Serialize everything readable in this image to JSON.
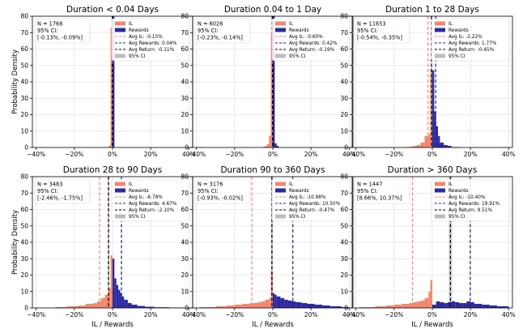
{
  "figure": {
    "xlabel": "IL / Rewards",
    "ylabel": "Probability Density",
    "x_ticks": [
      "−40%",
      "−20%",
      "0%",
      "20%",
      "40%"
    ],
    "y_ticks": [
      "0",
      "10",
      "20",
      "30",
      "40",
      "50",
      "60",
      "70",
      "80"
    ],
    "legend_labels": [
      "IL",
      "Rewards",
      "Avg IL: ",
      "Avg Rewards: ",
      "Avg Return: ",
      "95% CI"
    ],
    "colors": {
      "il": "#f4866d",
      "rewards": "#2b2aa0",
      "avg_il": "#f4866d",
      "avg_rewards": "#1f1f8f",
      "avg_return": "#000000",
      "ci": "#bdbdbd"
    }
  },
  "chart_data": [
    {
      "type": "bar",
      "title": "Duration < 0.04 Days",
      "n_text": "N = 1768",
      "ci_label": "95% CI:",
      "ci_text": "[-0.13%, -0.09%]",
      "avg_il": -0.15,
      "avg_il_text": "-0.15%",
      "avg_rewards": 0.04,
      "avg_rewards_text": "0.04%",
      "avg_return": -0.11,
      "avg_return_text": "-0.11%",
      "ci": [
        -0.13,
        -0.09
      ],
      "il_hist": [
        [
          -2,
          -1,
          1
        ],
        [
          -1,
          0,
          73
        ]
      ],
      "rewards_hist": [
        [
          0,
          1,
          80
        ]
      ]
    },
    {
      "type": "bar",
      "title": "Duration 0.04 to 1 Day",
      "n_text": "N = 6026",
      "ci_label": "95% CI:",
      "ci_text": "[-0.23%, -0.14%]",
      "avg_il": -0.6,
      "avg_il_text": "-0.60%",
      "avg_rewards": 0.42,
      "avg_rewards_text": "0.42%",
      "avg_return": -0.19,
      "avg_return_text": "-0.19%",
      "ci": [
        -0.23,
        -0.14
      ],
      "il_hist": [
        [
          -5,
          -4,
          0.5
        ],
        [
          -4,
          -3,
          1
        ],
        [
          -3,
          -2,
          2
        ],
        [
          -2,
          -1,
          7
        ],
        [
          -1,
          0,
          70
        ]
      ],
      "rewards_hist": [
        [
          0,
          1,
          80
        ],
        [
          1,
          2,
          2.5
        ],
        [
          2,
          3,
          1
        ]
      ]
    },
    {
      "type": "bar",
      "title": "Duration 1 to 28 Days",
      "n_text": "N = 11653",
      "ci_label": "95% CI:",
      "ci_text": "[-0.54%, -0.35%]",
      "avg_il": -2.22,
      "avg_il_text": "-2.22%",
      "avg_rewards": 1.77,
      "avg_rewards_text": "1.77%",
      "avg_return": -0.45,
      "avg_return_text": "-0.45%",
      "ci": [
        -0.54,
        -0.35
      ],
      "il_hist": [
        [
          -14,
          -12,
          0.3
        ],
        [
          -12,
          -10,
          0.5
        ],
        [
          -10,
          -8,
          1
        ],
        [
          -8,
          -6,
          1.5
        ],
        [
          -6,
          -4,
          3
        ],
        [
          -4,
          -2,
          7
        ],
        [
          -2,
          -1,
          8
        ],
        [
          -1,
          0,
          48
        ]
      ],
      "rewards_hist": [
        [
          0,
          1,
          47
        ],
        [
          1,
          2,
          22
        ],
        [
          2,
          3,
          13
        ],
        [
          3,
          4,
          7
        ],
        [
          4,
          6,
          3
        ],
        [
          6,
          8,
          1.5
        ],
        [
          8,
          10,
          1
        ],
        [
          10,
          14,
          0.3
        ]
      ]
    },
    {
      "type": "bar",
      "title": "Duration 28 to 90 Days",
      "n_text": "N = 3483",
      "ci_label": "95% CI:",
      "ci_text": "[-2.46%, -1.75%]",
      "avg_il": -6.78,
      "avg_il_text": "-6.78%",
      "avg_rewards": 4.67,
      "avg_rewards_text": "4.67%",
      "avg_return": -2.1,
      "avg_return_text": "-2.10%",
      "ci": [
        -2.46,
        -1.75
      ],
      "il_hist": [
        [
          -30,
          -24,
          0.5
        ],
        [
          -24,
          -18,
          1
        ],
        [
          -18,
          -14,
          1.5
        ],
        [
          -14,
          -10,
          2.5
        ],
        [
          -10,
          -8,
          3
        ],
        [
          -8,
          -6,
          4
        ],
        [
          -6,
          -4,
          6
        ],
        [
          -4,
          -2,
          8
        ],
        [
          -2,
          -1,
          12
        ],
        [
          -1,
          0,
          32
        ]
      ],
      "rewards_hist": [
        [
          0,
          1,
          30
        ],
        [
          1,
          2,
          18
        ],
        [
          2,
          3,
          14
        ],
        [
          3,
          4,
          11
        ],
        [
          4,
          5,
          9
        ],
        [
          5,
          6,
          7
        ],
        [
          6,
          8,
          5
        ],
        [
          8,
          10,
          3
        ],
        [
          10,
          13,
          2
        ],
        [
          13,
          17,
          1.2
        ],
        [
          17,
          22,
          0.7
        ],
        [
          22,
          30,
          0.4
        ],
        [
          30,
          38,
          0.2
        ]
      ]
    },
    {
      "type": "bar",
      "title": "Duration 90 to 360 Days",
      "n_text": "N = 3176",
      "ci_label": "95% CI:",
      "ci_text": "[-0.93%, -0.02%]",
      "avg_il": -10.98,
      "avg_il_text": "-10.98%",
      "avg_rewards": 10.5,
      "avg_rewards_text": "10.50%",
      "avg_return": -0.47,
      "avg_return_text": "-0.47%",
      "ci": [
        -0.93,
        -0.02
      ],
      "il_hist": [
        [
          -38,
          -30,
          0.5
        ],
        [
          -30,
          -24,
          1
        ],
        [
          -24,
          -20,
          1.5
        ],
        [
          -20,
          -16,
          2
        ],
        [
          -16,
          -12,
          2.5
        ],
        [
          -12,
          -10,
          3
        ],
        [
          -10,
          -8,
          3
        ],
        [
          -8,
          -6,
          3.5
        ],
        [
          -6,
          -4,
          4
        ],
        [
          -4,
          -2,
          5
        ],
        [
          -2,
          -1,
          6
        ],
        [
          -1,
          0,
          22
        ]
      ],
      "rewards_hist": [
        [
          0,
          1,
          9
        ],
        [
          1,
          2,
          8
        ],
        [
          2,
          4,
          7
        ],
        [
          4,
          6,
          6
        ],
        [
          6,
          8,
          5
        ],
        [
          8,
          10,
          4.5
        ],
        [
          10,
          12,
          4
        ],
        [
          12,
          15,
          3.5
        ],
        [
          15,
          18,
          3
        ],
        [
          18,
          22,
          2.5
        ],
        [
          22,
          26,
          2
        ],
        [
          26,
          30,
          1.5
        ],
        [
          30,
          36,
          1
        ],
        [
          36,
          40,
          0.5
        ]
      ]
    },
    {
      "type": "bar",
      "title": "Duration > 360 Days",
      "n_text": "N = 1447",
      "ci_label": "95% CI:",
      "ci_text": "[8.66%, 10.37%]",
      "avg_il": -10.4,
      "avg_il_text": "-10.40%",
      "avg_rewards": 19.91,
      "avg_rewards_text": "19.91%",
      "avg_return": 9.51,
      "avg_return_text": "9.51%",
      "ci": [
        8.66,
        10.37
      ],
      "il_hist": [
        [
          -38,
          -30,
          0.5
        ],
        [
          -30,
          -24,
          1
        ],
        [
          -24,
          -20,
          1.5
        ],
        [
          -20,
          -16,
          2
        ],
        [
          -16,
          -12,
          2.5
        ],
        [
          -12,
          -10,
          3
        ],
        [
          -10,
          -8,
          3.5
        ],
        [
          -8,
          -6,
          4
        ],
        [
          -6,
          -4,
          4.5
        ],
        [
          -4,
          -2,
          6
        ],
        [
          -2,
          -1,
          10
        ],
        [
          -1,
          0,
          17
        ]
      ],
      "rewards_hist": [
        [
          0,
          2,
          2
        ],
        [
          2,
          4,
          4
        ],
        [
          4,
          6,
          3.5
        ],
        [
          6,
          8,
          3
        ],
        [
          8,
          10,
          3.5
        ],
        [
          10,
          12,
          4
        ],
        [
          12,
          14,
          3.5
        ],
        [
          14,
          16,
          3
        ],
        [
          16,
          18,
          3
        ],
        [
          18,
          20,
          4
        ],
        [
          20,
          22,
          3.5
        ],
        [
          22,
          26,
          2.5
        ],
        [
          26,
          30,
          2
        ],
        [
          30,
          34,
          1.5
        ],
        [
          34,
          40,
          1
        ]
      ]
    }
  ]
}
